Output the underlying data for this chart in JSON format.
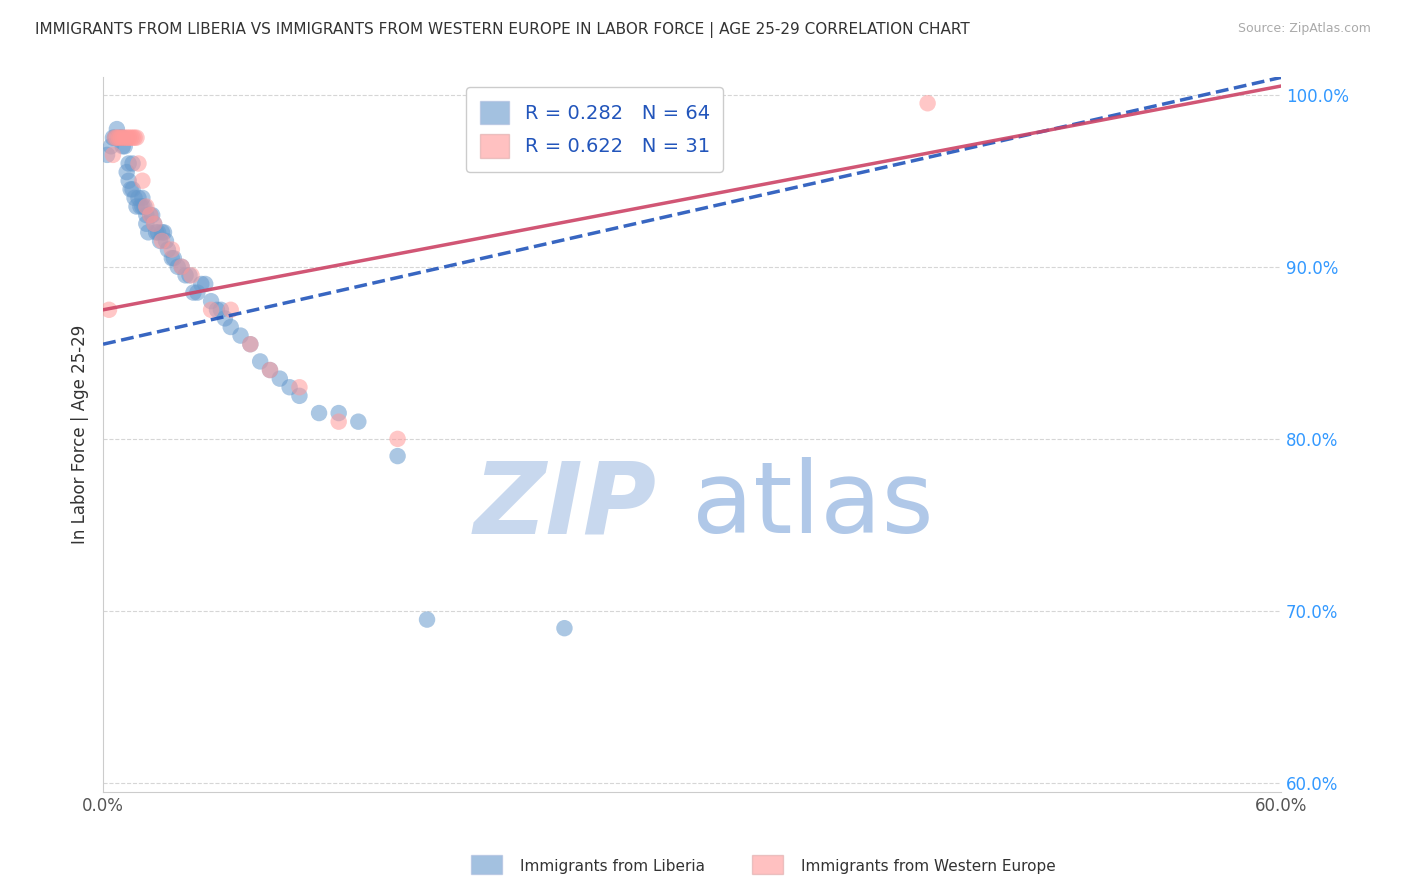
{
  "title": "IMMIGRANTS FROM LIBERIA VS IMMIGRANTS FROM WESTERN EUROPE IN LABOR FORCE | AGE 25-29 CORRELATION CHART",
  "source": "Source: ZipAtlas.com",
  "ylabel": "In Labor Force | Age 25-29",
  "xlim": [
    0.0,
    0.6
  ],
  "ylim": [
    0.595,
    1.01
  ],
  "xticks": [
    0.0,
    0.1,
    0.2,
    0.3,
    0.4,
    0.5,
    0.6
  ],
  "xticklabels": [
    "0.0%",
    "",
    "",
    "",
    "",
    "",
    "60.0%"
  ],
  "yticks": [
    0.6,
    0.7,
    0.8,
    0.9,
    1.0
  ],
  "yticklabels": [
    "60.0%",
    "70.0%",
    "80.0%",
    "90.0%",
    "100.0%"
  ],
  "liberia_color": "#6699cc",
  "western_europe_color": "#ff9999",
  "liberia_R": 0.282,
  "liberia_N": 64,
  "western_europe_R": 0.622,
  "western_europe_N": 31,
  "liberia_line_x0": 0.0,
  "liberia_line_y0": 0.855,
  "liberia_line_x1": 0.6,
  "liberia_line_y1": 1.01,
  "western_line_x0": 0.0,
  "western_line_y0": 0.875,
  "western_line_x1": 0.6,
  "western_line_y1": 1.005,
  "liberia_scatter_x": [
    0.002,
    0.004,
    0.005,
    0.006,
    0.007,
    0.008,
    0.009,
    0.01,
    0.01,
    0.011,
    0.012,
    0.013,
    0.013,
    0.014,
    0.015,
    0.015,
    0.016,
    0.017,
    0.018,
    0.019,
    0.02,
    0.02,
    0.021,
    0.022,
    0.022,
    0.023,
    0.024,
    0.025,
    0.026,
    0.027,
    0.028,
    0.029,
    0.03,
    0.031,
    0.032,
    0.033,
    0.035,
    0.036,
    0.038,
    0.04,
    0.042,
    0.044,
    0.046,
    0.048,
    0.05,
    0.052,
    0.055,
    0.058,
    0.06,
    0.062,
    0.065,
    0.07,
    0.075,
    0.08,
    0.085,
    0.09,
    0.095,
    0.1,
    0.11,
    0.12,
    0.13,
    0.15,
    0.165,
    0.235
  ],
  "liberia_scatter_y": [
    0.965,
    0.97,
    0.975,
    0.975,
    0.98,
    0.975,
    0.975,
    0.975,
    0.97,
    0.97,
    0.955,
    0.95,
    0.96,
    0.945,
    0.945,
    0.96,
    0.94,
    0.935,
    0.94,
    0.935,
    0.935,
    0.94,
    0.935,
    0.93,
    0.925,
    0.92,
    0.93,
    0.93,
    0.925,
    0.92,
    0.92,
    0.915,
    0.92,
    0.92,
    0.915,
    0.91,
    0.905,
    0.905,
    0.9,
    0.9,
    0.895,
    0.895,
    0.885,
    0.885,
    0.89,
    0.89,
    0.88,
    0.875,
    0.875,
    0.87,
    0.865,
    0.86,
    0.855,
    0.845,
    0.84,
    0.835,
    0.83,
    0.825,
    0.815,
    0.815,
    0.81,
    0.79,
    0.695,
    0.69
  ],
  "western_europe_scatter_x": [
    0.003,
    0.005,
    0.006,
    0.007,
    0.008,
    0.009,
    0.01,
    0.011,
    0.012,
    0.013,
    0.014,
    0.015,
    0.016,
    0.017,
    0.018,
    0.02,
    0.022,
    0.024,
    0.026,
    0.03,
    0.035,
    0.04,
    0.045,
    0.055,
    0.065,
    0.075,
    0.085,
    0.1,
    0.12,
    0.15,
    0.42
  ],
  "western_europe_scatter_y": [
    0.875,
    0.965,
    0.975,
    0.975,
    0.975,
    0.975,
    0.975,
    0.975,
    0.975,
    0.975,
    0.975,
    0.975,
    0.975,
    0.975,
    0.96,
    0.95,
    0.935,
    0.93,
    0.925,
    0.915,
    0.91,
    0.9,
    0.895,
    0.875,
    0.875,
    0.855,
    0.84,
    0.83,
    0.81,
    0.8,
    0.995
  ],
  "watermark_zip": "ZIP",
  "watermark_atlas": "atlas",
  "watermark_color_zip": "#c8d8ee",
  "watermark_color_atlas": "#c8d8ee",
  "grid_color": "#cccccc",
  "background_color": "#ffffff"
}
